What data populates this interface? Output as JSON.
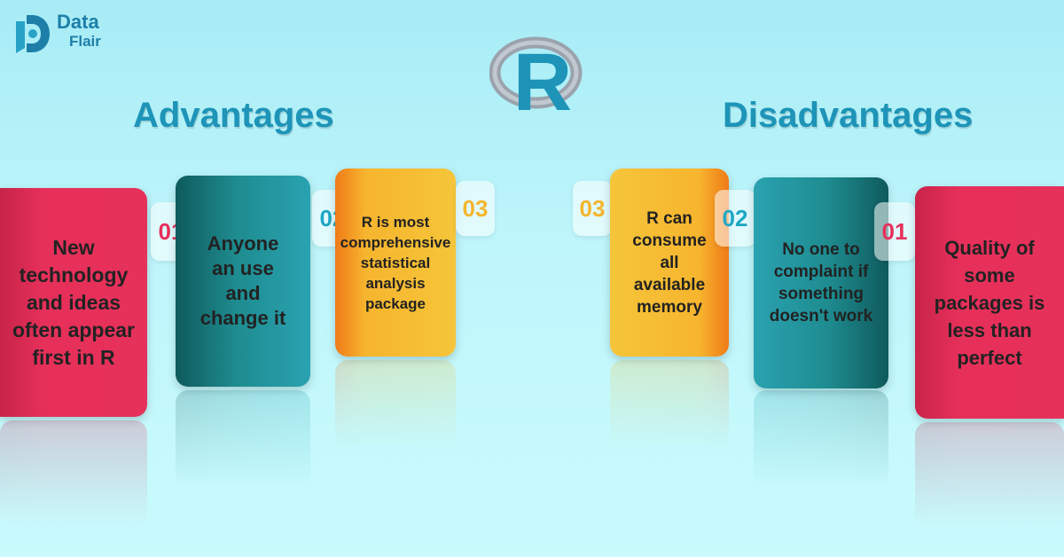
{
  "logo": {
    "line1": "Data",
    "line2": "Flair"
  },
  "r_logo": {
    "letter": "R"
  },
  "advantages": {
    "heading": "Advantages",
    "items": [
      {
        "number": "01",
        "text": "New technology and ideas often appear first in R"
      },
      {
        "number": "02",
        "text": "Anyone an use and change it"
      },
      {
        "number": "03",
        "text": "R is most comprehensive statistical analysis package"
      }
    ]
  },
  "disadvantages": {
    "heading": "Disadvantages",
    "items": [
      {
        "number": "01",
        "text": "Quality of some packages is less than perfect"
      },
      {
        "number": "02",
        "text": "No one to complaint if something doesn't work"
      },
      {
        "number": "03",
        "text": "R can consume all available memory"
      }
    ]
  },
  "colors": {
    "red": "#e6305a",
    "teal": "#1e8c90",
    "yellow": "#f5c53a",
    "heading": "#1d94b8",
    "background": "#bff6fb"
  }
}
